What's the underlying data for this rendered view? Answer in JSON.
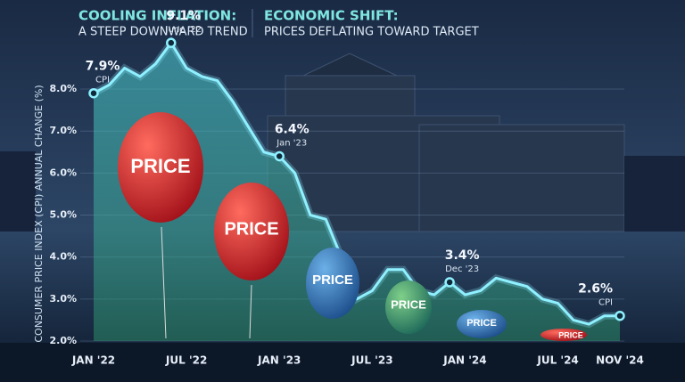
{
  "chart_data": {
    "type": "line",
    "title_left": "COOLING INFLATION:",
    "subtitle_left": "A STEEP DOWNWARD TREND",
    "title_right": "ECONOMIC SHIFT:",
    "subtitle_right": "PRICES DEFLATING TOWARD TARGET",
    "y_label": "CONSUMER PRICE INDEX (CPI) ANNUAL CHANGE (%)",
    "categories": [
      "JAN '22",
      null,
      null,
      null,
      null,
      null,
      "JUL '22",
      null,
      null,
      null,
      null,
      null,
      "JAN '23",
      null,
      null,
      null,
      null,
      null,
      "JUL '23",
      null,
      null,
      null,
      null,
      null,
      "JAN '24",
      null,
      null,
      null,
      null,
      null,
      "JUL '24",
      null,
      null,
      null,
      "NOV '24"
    ],
    "values": [
      7.9,
      8.1,
      8.5,
      8.3,
      8.6,
      9.1,
      8.5,
      8.3,
      8.2,
      7.7,
      7.1,
      6.5,
      6.4,
      6.0,
      5.0,
      4.9,
      4.0,
      3.0,
      3.2,
      3.7,
      3.7,
      3.2,
      3.1,
      3.4,
      3.1,
      3.2,
      3.5,
      3.4,
      3.3,
      3.0,
      2.9,
      2.5,
      2.4,
      2.6,
      2.6
    ],
    "value_labels": [
      "7.9%",
      null,
      null,
      null,
      null,
      "9.1%",
      null,
      null,
      null,
      null,
      null,
      null,
      "6.4%",
      null,
      null,
      null,
      null,
      null,
      null,
      null,
      null,
      null,
      null,
      "3.4%",
      null,
      null,
      null,
      null,
      null,
      null,
      null,
      null,
      null,
      null,
      "2.6%"
    ],
    "point_notes": [
      "CPI",
      null,
      null,
      null,
      null,
      "June '22",
      null,
      null,
      null,
      null,
      null,
      null,
      "Jan '23",
      null,
      null,
      null,
      null,
      null,
      null,
      null,
      null,
      null,
      null,
      "Dec '23",
      null,
      null,
      null,
      null,
      null,
      null,
      null,
      null,
      null,
      null,
      "CPI"
    ],
    "color": "#8ff0ff",
    "ylim": [
      2,
      9.4
    ],
    "yticks": [
      {
        "value": 2,
        "label": "2.0%"
      },
      {
        "value": 3,
        "label": "3.0%"
      },
      {
        "value": 4,
        "label": "4.0%"
      },
      {
        "value": 5,
        "label": "5.0%"
      },
      {
        "value": 6,
        "label": "6.0%"
      },
      {
        "value": 7,
        "label": "7.0%"
      },
      {
        "value": 8,
        "label": "8.0%"
      }
    ],
    "grid": true,
    "balloons": [
      "PRICE",
      "PRICE",
      "PRICE",
      "PRICE",
      "PRICE",
      "PRICE"
    ]
  }
}
